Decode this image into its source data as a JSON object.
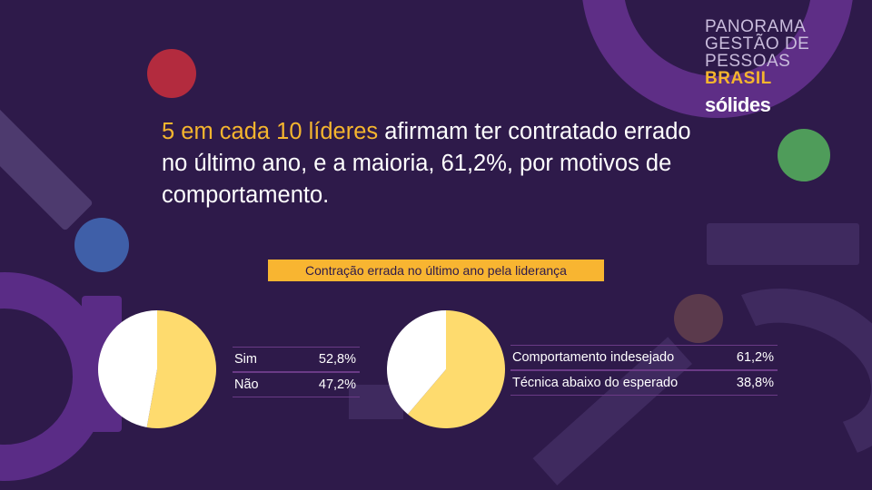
{
  "brand": {
    "lines": [
      "PANORAMA",
      "GESTÃO DE",
      "PESSOAS"
    ],
    "highlight": "BRASIL",
    "logo": "sólides"
  },
  "headline": {
    "highlight": "5 em cada 10 líderes",
    "rest": " afirmam ter contratado errado no último ano, e a maioria, 61,2%, por motivos de comportamento."
  },
  "chart_title": "Contração errada no último ano pela liderança",
  "colors": {
    "background": "#2e1a4a",
    "accent": "#f5b52e",
    "pie_primary": "#fedb6e",
    "pie_secondary": "#ffffff"
  },
  "chart_data": [
    {
      "type": "pie",
      "slices": [
        {
          "label": "Sim",
          "value": 52.8,
          "display": "52,8%"
        },
        {
          "label": "Não",
          "value": 47.2,
          "display": "47,2%"
        }
      ]
    },
    {
      "type": "pie",
      "slices": [
        {
          "label": "Comportamento indesejado",
          "value": 61.2,
          "display": "61,2%"
        },
        {
          "label": "Técnica abaixo do esperado",
          "value": 38.8,
          "display": "38,8%"
        }
      ]
    }
  ]
}
